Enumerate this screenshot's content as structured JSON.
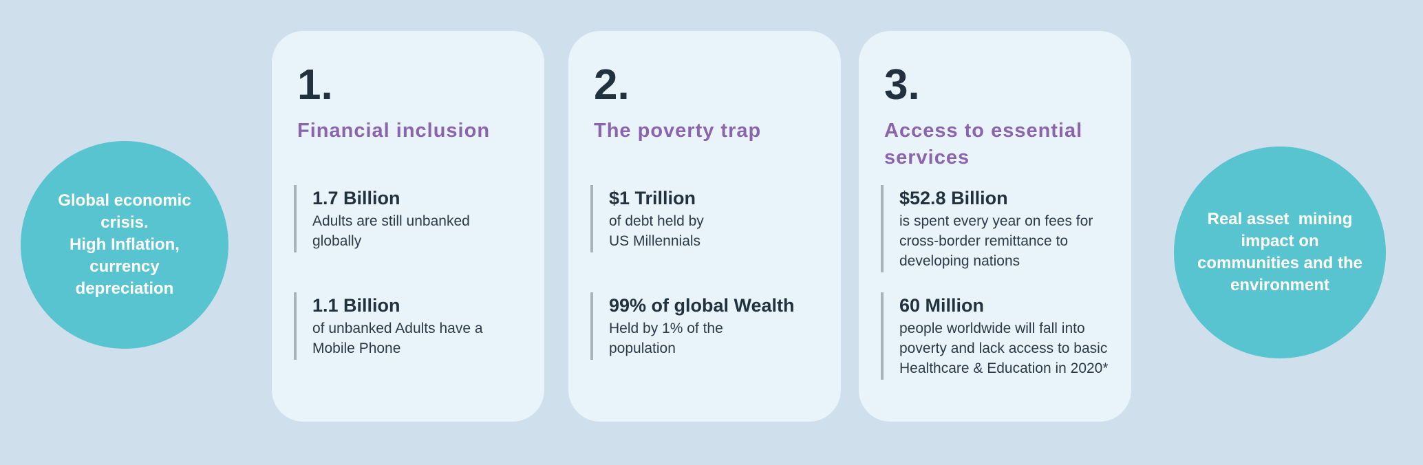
{
  "colors": {
    "page_background": "#cfe0ec",
    "card_background": "#e9f3fa",
    "circle_teal": "#58c4cf",
    "title_purple": "#8a64ad",
    "text_dark": "#22313e",
    "accent_line_gray": "#a8b2b9"
  },
  "left_circle": {
    "text": "Global economic\ncrisis.\nHigh Inflation,\ncurrency\ndepreciation"
  },
  "right_circle": {
    "text": "Real asset  mining\nimpact on\ncommunities and the\nenvironment"
  },
  "cards": [
    {
      "number": "1.",
      "title": "Financial inclusion",
      "stats": [
        {
          "value": "1.7 Billion",
          "description": "Adults are still unbanked\nglobally"
        },
        {
          "value": "1.1 Billion",
          "description": "of unbanked Adults have a\nMobile Phone"
        }
      ]
    },
    {
      "number": "2.",
      "title": "The poverty trap",
      "stats": [
        {
          "value": "$1 Trillion",
          "description": "of debt held by\nUS Millennials"
        },
        {
          "value": "99% of global Wealth",
          "description": "Held by 1% of the\npopulation"
        }
      ]
    },
    {
      "number": "3.",
      "title": "Access to essential services",
      "stats": [
        {
          "value": "$52.8 Billion",
          "description": "is spent every year on fees for\ncross-border remittance to\ndeveloping nations"
        },
        {
          "value": "60 Million",
          "description": "people worldwide will fall into\npoverty and lack access to basic\nHealthcare & Education in 2020*"
        }
      ]
    }
  ]
}
